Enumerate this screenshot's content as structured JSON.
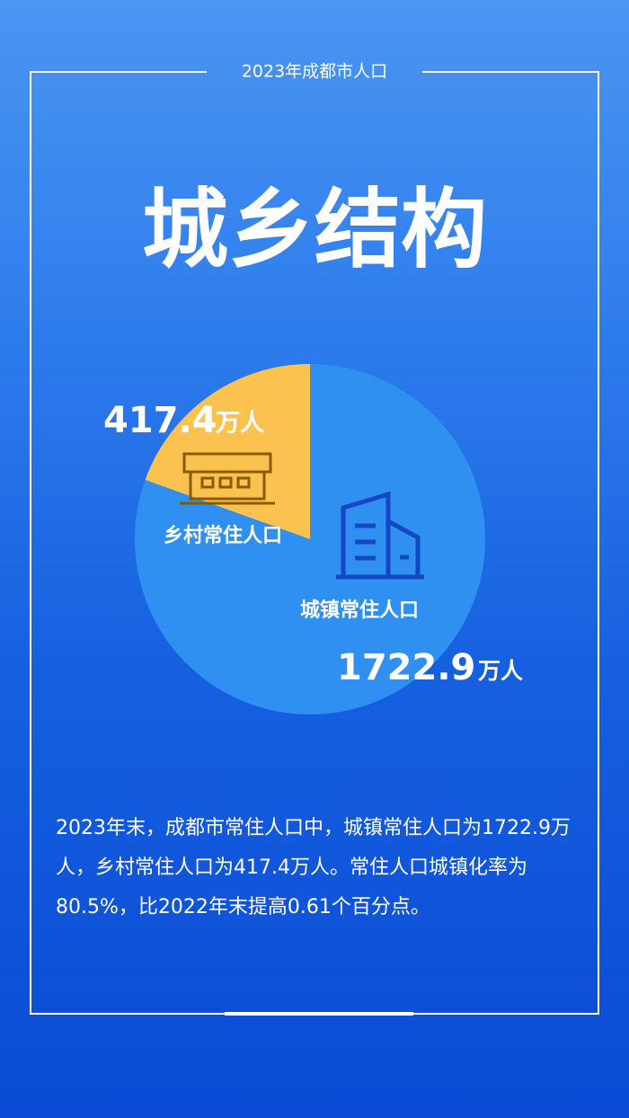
{
  "chart_data": {
    "type": "pie",
    "subtitle": "2023年成都市人口",
    "title": "城乡结构",
    "categories": [
      "乡村常住人口",
      "城镇常住人口"
    ],
    "values": [
      417.4,
      1722.9
    ],
    "unit": "万人",
    "colors": [
      "#fcc24f",
      "#2f90f2"
    ],
    "note": "2023年末，成都市常住人口中，城镇常住人口为1722.9万人，乡村常住人口为417.4万人。常住人口城镇化率为80.5%，比2022年末提高0.61个百分点。"
  }
}
